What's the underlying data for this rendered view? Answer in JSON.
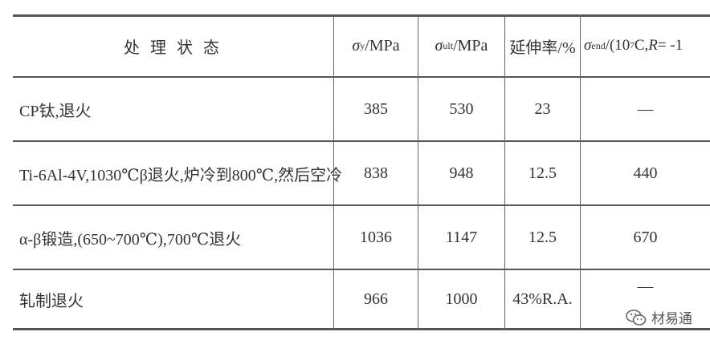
{
  "table": {
    "headers": {
      "treatment": "处 理 状 态",
      "yield_sigma": "σ",
      "yield_sub": "y",
      "yield_unit": "/MPa",
      "ult_sigma": "σ",
      "ult_sub": "ult",
      "ult_unit": "/MPa",
      "elongation": "延伸率/%",
      "end_sigma": "σ",
      "end_sub": "end",
      "end_rest_a": "/(10",
      "end_sup": "7",
      "end_rest_b": "C,",
      "end_R": "R",
      "end_rest_c": " = -1"
    },
    "rows": [
      {
        "treatment": "CP钛,退火",
        "yield": "385",
        "ult": "530",
        "elongation": "23",
        "endurance": "—"
      },
      {
        "treatment": "Ti-6Al-4V,1030℃β退火,炉冷到800℃,然后空冷",
        "yield": "838",
        "ult": "948",
        "elongation": "12.5",
        "endurance": "440"
      },
      {
        "treatment": "α-β锻造,(650~700℃),700℃退火",
        "yield": "1036",
        "ult": "1147",
        "elongation": "12.5",
        "endurance": "670"
      },
      {
        "treatment": "轧制退火",
        "yield": "966",
        "ult": "1000",
        "elongation": "43%R.A.",
        "endurance": "—"
      }
    ]
  },
  "watermark": {
    "icon": "wechat-icon",
    "text": "材易通"
  }
}
